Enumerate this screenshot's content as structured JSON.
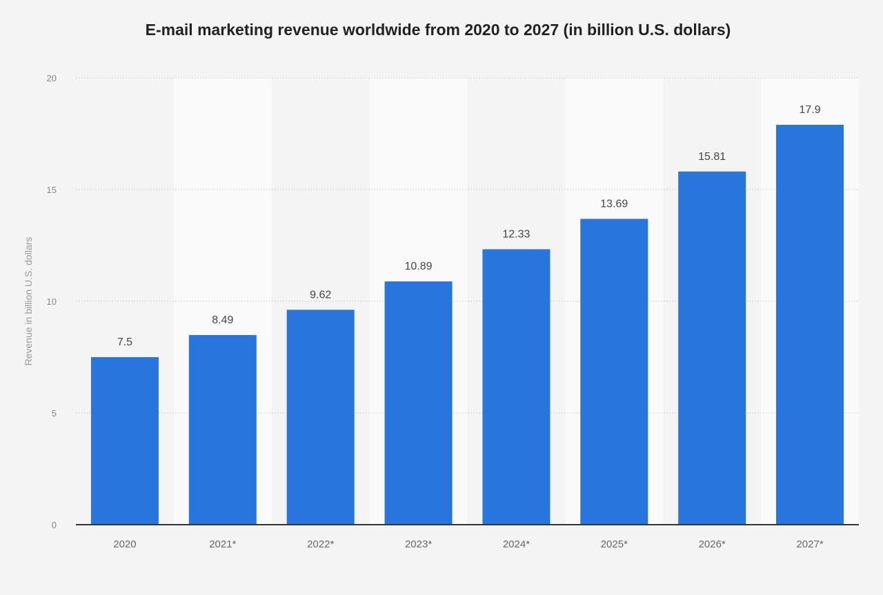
{
  "chart_data": {
    "type": "bar",
    "title": "E-mail marketing revenue worldwide from 2020 to 2027 (in billion U.S. dollars)",
    "xlabel": "",
    "ylabel": "Revenue in billion U.S. dollars",
    "categories": [
      "2020",
      "2021*",
      "2022*",
      "2023*",
      "2024*",
      "2025*",
      "2026*",
      "2027*"
    ],
    "values": [
      7.5,
      8.49,
      9.62,
      10.89,
      12.33,
      13.69,
      15.81,
      17.9
    ],
    "data_labels": [
      "7.5",
      "8.49",
      "9.62",
      "10.89",
      "12.33",
      "13.69",
      "15.81",
      "17.9"
    ],
    "ylim": [
      0,
      20
    ],
    "yticks": [
      0,
      5,
      10,
      15,
      20
    ],
    "grid": true,
    "legend": "none",
    "colors": {
      "bar": "#2876dd",
      "background": "#f4f4f4",
      "alt_band": "#fafafa"
    }
  }
}
